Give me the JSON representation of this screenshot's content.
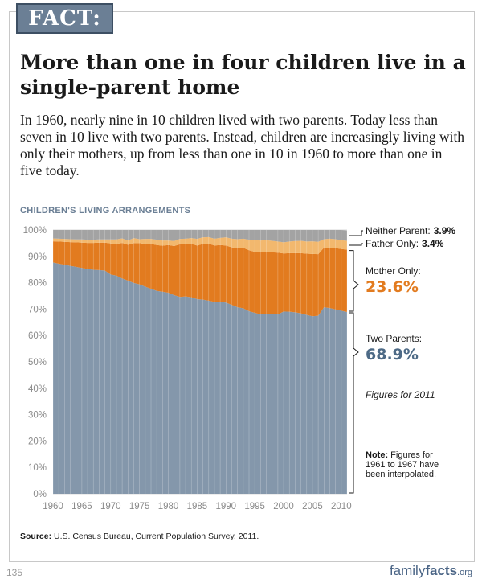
{
  "header": {
    "fact_label": "FACT:",
    "title": "More than one in four children live in a single-parent home",
    "intro": "In 1960, nearly nine in 10 children lived with two parents. Today less than seven in 10 live with two parents. Instead, children are increasingly living with only their mothers, up from less than one in 10 in 1960 to more than one in five today."
  },
  "colors": {
    "two_parents": "#8497ab",
    "mother_only": "#e27b1f",
    "father_only": "#f2b86e",
    "neither_parent": "#a3a3a3",
    "header_box": "#6b7f95"
  },
  "chart_data": {
    "type": "area",
    "stacked": true,
    "title": "CHILDREN'S LIVING ARRANGEMENTS",
    "x": [
      1960,
      1961,
      1962,
      1963,
      1964,
      1965,
      1966,
      1967,
      1968,
      1969,
      1970,
      1971,
      1972,
      1973,
      1974,
      1975,
      1976,
      1977,
      1978,
      1979,
      1980,
      1981,
      1982,
      1983,
      1984,
      1985,
      1986,
      1987,
      1988,
      1989,
      1990,
      1991,
      1992,
      1993,
      1994,
      1995,
      1996,
      1997,
      1998,
      1999,
      2000,
      2001,
      2002,
      2003,
      2004,
      2005,
      2006,
      2007,
      2008,
      2009,
      2010,
      2011
    ],
    "ylim": [
      0,
      100
    ],
    "yticks": [
      "0%",
      "10%",
      "20%",
      "30%",
      "40%",
      "50%",
      "60%",
      "70%",
      "80%",
      "90%",
      "100%"
    ],
    "xticks": [
      "1960",
      "1965",
      "1970",
      "1975",
      "1980",
      "1985",
      "1990",
      "1995",
      "2000",
      "2005",
      "2010"
    ],
    "series": [
      {
        "name": "Two Parents",
        "values": [
          87.7,
          87.2,
          86.8,
          86.4,
          86.0,
          85.6,
          85.2,
          84.9,
          84.8,
          84.6,
          83.1,
          82.7,
          81.6,
          80.8,
          79.9,
          79.4,
          78.5,
          77.7,
          76.9,
          76.6,
          76.2,
          75.3,
          74.6,
          74.8,
          74.5,
          73.8,
          73.6,
          73.2,
          72.7,
          72.7,
          72.5,
          71.6,
          70.7,
          70.3,
          69.2,
          68.6,
          68.0,
          68.1,
          68.1,
          68.0,
          69.1,
          69.0,
          68.8,
          68.4,
          67.8,
          67.3,
          67.5,
          70.7,
          70.4,
          69.9,
          69.4,
          68.9
        ]
      },
      {
        "name": "Mother Only",
        "values": [
          8.0,
          8.4,
          8.7,
          9.0,
          9.3,
          9.6,
          9.9,
          10.2,
          10.4,
          10.6,
          11.8,
          12.0,
          13.5,
          13.6,
          15.1,
          15.6,
          16.2,
          17.0,
          17.4,
          17.4,
          18.1,
          18.6,
          20.0,
          19.9,
          20.2,
          20.3,
          21.1,
          21.6,
          21.4,
          21.6,
          21.6,
          21.8,
          22.4,
          22.9,
          23.1,
          23.1,
          23.6,
          23.6,
          23.4,
          23.4,
          22.0,
          22.2,
          22.4,
          22.8,
          23.2,
          23.6,
          23.3,
          22.6,
          22.9,
          23.2,
          23.4,
          23.6
        ]
      },
      {
        "name": "Father Only",
        "values": [
          1.1,
          1.1,
          1.1,
          1.1,
          1.1,
          1.2,
          1.2,
          1.2,
          1.2,
          1.2,
          1.5,
          1.7,
          1.7,
          1.6,
          1.9,
          1.5,
          1.9,
          1.9,
          2.0,
          2.0,
          1.7,
          1.9,
          2.0,
          2.0,
          2.2,
          2.5,
          2.5,
          2.5,
          2.6,
          2.7,
          3.1,
          3.3,
          3.4,
          3.5,
          4.0,
          4.5,
          4.4,
          4.4,
          4.4,
          4.2,
          4.2,
          4.4,
          4.6,
          4.7,
          4.6,
          4.8,
          4.7,
          3.2,
          3.4,
          3.4,
          3.3,
          3.4
        ]
      },
      {
        "name": "Neither Parent",
        "values": [
          3.2,
          3.3,
          3.4,
          3.5,
          3.6,
          3.6,
          3.7,
          3.7,
          3.6,
          3.6,
          3.6,
          3.6,
          3.2,
          4.0,
          3.1,
          3.5,
          3.4,
          3.4,
          3.7,
          4.0,
          4.0,
          4.2,
          3.4,
          3.3,
          3.1,
          3.4,
          2.8,
          2.7,
          3.3,
          3.0,
          2.8,
          3.3,
          3.5,
          3.3,
          3.7,
          3.8,
          4.0,
          3.9,
          4.1,
          4.4,
          4.7,
          4.4,
          4.2,
          4.1,
          4.4,
          4.3,
          4.5,
          3.5,
          3.3,
          3.5,
          3.9,
          3.9
        ]
      }
    ],
    "legend": [
      {
        "series": "Neither Parent",
        "label": "Neither Parent:",
        "value": "3.9%"
      },
      {
        "series": "Father Only",
        "label": "Father Only:",
        "value": "3.4%"
      },
      {
        "series": "Mother Only",
        "label": "Mother Only:",
        "value": "23.6%"
      },
      {
        "series": "Two Parents",
        "label": "Two Parents:",
        "value": "68.9%"
      }
    ],
    "annotations": {
      "figures_note": "Figures for 2011",
      "note_label": "Note:",
      "note_lines": [
        " Figures for",
        "1961 to 1967 have",
        "been interpolated."
      ]
    }
  },
  "footer": {
    "source_label": "Source:",
    "source_text": " U.S. Census Bureau, Current Population Survey, 2011.",
    "page_number": "135",
    "brand_part1": "family",
    "brand_part2": "facts",
    "brand_part3": ".org"
  }
}
